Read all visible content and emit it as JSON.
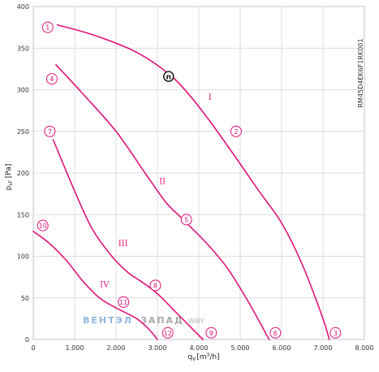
{
  "chart_data": {
    "type": "line",
    "title": "",
    "xlabel": "q",
    "xlabel_sub": "V",
    "xlabel_unit": "[m",
    "xlabel_sup": "3",
    "xlabel_unit_end": "/h]",
    "ylabel": "p",
    "ylabel_sub": "sF",
    "ylabel_unit": " [Pa]",
    "xlim": [
      0,
      8000
    ],
    "ylim": [
      0,
      400
    ],
    "grid": true,
    "x_ticks": [
      {
        "value": 0,
        "label": "0"
      },
      {
        "value": 1000,
        "label": "1.000"
      },
      {
        "value": 2000,
        "label": "2.000"
      },
      {
        "value": 3000,
        "label": "3.000"
      },
      {
        "value": 4000,
        "label": "4.000"
      },
      {
        "value": 5000,
        "label": "5.000"
      },
      {
        "value": 6000,
        "label": "6.000"
      },
      {
        "value": 7000,
        "label": "7.000"
      },
      {
        "value": 8000,
        "label": "8.000"
      }
    ],
    "y_ticks": [
      {
        "value": 0,
        "label": "0"
      },
      {
        "value": 50,
        "label": "50"
      },
      {
        "value": 100,
        "label": "100"
      },
      {
        "value": 150,
        "label": "150"
      },
      {
        "value": 200,
        "label": "200"
      },
      {
        "value": 250,
        "label": "250"
      },
      {
        "value": 300,
        "label": "300"
      },
      {
        "value": 350,
        "label": "350"
      },
      {
        "value": 400,
        "label": "400"
      }
    ],
    "side_code": "RM45D4EK6F1RK001",
    "series": [
      {
        "name": "I",
        "color": "#e0147a",
        "x": [
          580,
          1500,
          2500,
          3300,
          3800,
          4300,
          4900,
          5500,
          6000,
          6500,
          7000,
          7150
        ],
        "y": [
          378,
          365,
          345,
          318,
          292,
          260,
          218,
          175,
          140,
          90,
          25,
          0
        ]
      },
      {
        "name": "II",
        "color": "#e0147a",
        "x": [
          550,
          1200,
          2000,
          2700,
          3200,
          3500,
          3700,
          4200,
          4700,
          5200,
          5700
        ],
        "y": [
          330,
          295,
          250,
          200,
          165,
          150,
          140,
          115,
          85,
          45,
          0
        ]
      },
      {
        "name": "III",
        "color": "#e0147a",
        "x": [
          480,
          900,
          1400,
          1900,
          2300,
          2600,
          3000,
          3400,
          3800,
          4100
        ],
        "y": [
          240,
          190,
          135,
          100,
          80,
          70,
          55,
          35,
          15,
          0
        ]
      },
      {
        "name": "IV",
        "color": "#e0147a",
        "x": [
          0,
          400,
          800,
          1200,
          1600,
          2000,
          2500,
          2800,
          3000
        ],
        "y": [
          130,
          115,
          95,
          70,
          50,
          38,
          25,
          12,
          0
        ]
      }
    ],
    "annotations": [
      {
        "text": "I",
        "x": 4270,
        "y": 288
      },
      {
        "text": "II",
        "x": 3120,
        "y": 187
      },
      {
        "text": "III",
        "x": 2170,
        "y": 112
      },
      {
        "text": "IV",
        "x": 1720,
        "y": 63
      }
    ],
    "markers": [
      {
        "label": "1",
        "x": 350,
        "y": 375
      },
      {
        "label": "2",
        "x": 4900,
        "y": 250
      },
      {
        "label": "3",
        "x": 7300,
        "y": 8
      },
      {
        "label": "4",
        "x": 450,
        "y": 313
      },
      {
        "label": "5",
        "x": 3700,
        "y": 144
      },
      {
        "label": "6",
        "x": 5850,
        "y": 8
      },
      {
        "label": "7",
        "x": 400,
        "y": 250
      },
      {
        "label": "8",
        "x": 2950,
        "y": 65
      },
      {
        "label": "9",
        "x": 4300,
        "y": 8
      },
      {
        "label": "10",
        "x": 230,
        "y": 137
      },
      {
        "label": "11",
        "x": 2180,
        "y": 45
      },
      {
        "label": "12",
        "x": 3250,
        "y": 8
      }
    ],
    "operating_point": {
      "label": "n",
      "x": 3270,
      "y": 316
    }
  },
  "watermark": {
    "part1": "ВЕНТЭЛ",
    "part2": "ЗАПАД",
    "part3": ".WBY"
  }
}
